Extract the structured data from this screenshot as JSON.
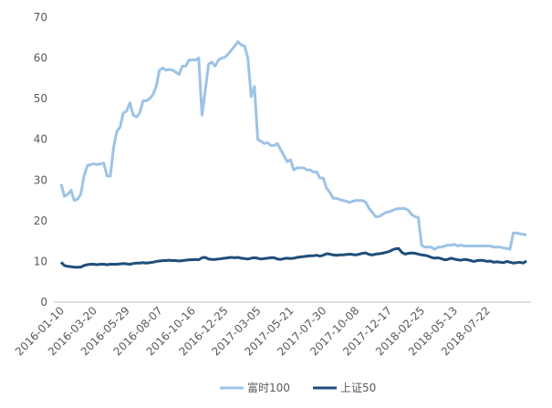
{
  "chart_data": {
    "type": "line",
    "categories": [
      "2016-01-10",
      null,
      null,
      null,
      null,
      null,
      null,
      null,
      null,
      null,
      "2016-03-20",
      null,
      null,
      null,
      null,
      null,
      null,
      null,
      null,
      null,
      "2016-05-29",
      null,
      null,
      null,
      null,
      null,
      null,
      null,
      null,
      null,
      "2016-08-07",
      null,
      null,
      null,
      null,
      null,
      null,
      null,
      null,
      null,
      "2016-10-16",
      null,
      null,
      null,
      null,
      null,
      null,
      null,
      null,
      null,
      "2016-12-25",
      null,
      null,
      null,
      null,
      null,
      null,
      null,
      null,
      null,
      "2017-03-05",
      null,
      null,
      null,
      null,
      null,
      null,
      null,
      null,
      null,
      "2017-05-21",
      null,
      null,
      null,
      null,
      null,
      null,
      null,
      null,
      null,
      "2017-07-30",
      null,
      null,
      null,
      null,
      null,
      null,
      null,
      null,
      null,
      "2017-10-08",
      null,
      null,
      null,
      null,
      null,
      null,
      null,
      null,
      null,
      "2017-12-17",
      null,
      null,
      null,
      null,
      null,
      null,
      null,
      null,
      null,
      "2018-02-25",
      null,
      null,
      null,
      null,
      null,
      null,
      null,
      null,
      null,
      "2018-05-13",
      null,
      null,
      null,
      null,
      null,
      null,
      null,
      null,
      null,
      "2018-07-22",
      null,
      null,
      null,
      null,
      null,
      null,
      null,
      null,
      null,
      null,
      null,
      null
    ],
    "series": [
      {
        "name": "富时100",
        "color": "#9dc3e6",
        "values": [
          29,
          26,
          26.5,
          27.5,
          25,
          25.3,
          26.5,
          31,
          33.5,
          33.8,
          34,
          33.8,
          34,
          34.2,
          31,
          31,
          38,
          42,
          43,
          46.5,
          47,
          49,
          46,
          45.5,
          46.5,
          49.5,
          49.5,
          50,
          51,
          53,
          57,
          57.5,
          57,
          57.2,
          57,
          56.5,
          56,
          58,
          58,
          59.5,
          59.5,
          59.5,
          60,
          46,
          52,
          58.5,
          59,
          58,
          59.5,
          60,
          60.2,
          61,
          62,
          63,
          64,
          63.2,
          63,
          60,
          50.5,
          53,
          40,
          39.5,
          39,
          39.2,
          38.5,
          38.5,
          39,
          37.5,
          36,
          34.5,
          35,
          32.5,
          33,
          33,
          33,
          32.5,
          32.5,
          32,
          32,
          30.5,
          30.5,
          28,
          27,
          25.5,
          25.5,
          25.2,
          25,
          24.8,
          24.5,
          24.8,
          25,
          25,
          25,
          24.5,
          23,
          22,
          21,
          21,
          21.5,
          22,
          22.2,
          22.5,
          22.8,
          23,
          23,
          23,
          22.5,
          21.5,
          21,
          20.8,
          14,
          13.5,
          13.5,
          13.5,
          13,
          13.5,
          13.5,
          13.8,
          14,
          14,
          14.2,
          13.8,
          14,
          13.8,
          13.8,
          13.8,
          13.8,
          13.8,
          13.8,
          13.8,
          13.8,
          13.8,
          13.5,
          13.5,
          13.5,
          13.3,
          13.2,
          13,
          17,
          17,
          16.8,
          16.7,
          16.5
        ]
      },
      {
        "name": "上证50",
        "color": "#1f4e79",
        "values": [
          9.8,
          9,
          8.8,
          8.7,
          8.6,
          8.6,
          8.6,
          9,
          9.2,
          9.3,
          9.3,
          9.2,
          9.3,
          9.3,
          9.2,
          9.3,
          9.3,
          9.3,
          9.4,
          9.5,
          9.4,
          9.3,
          9.5,
          9.6,
          9.6,
          9.7,
          9.6,
          9.7,
          9.8,
          10,
          10.1,
          10.2,
          10.2,
          10.3,
          10.2,
          10.2,
          10.1,
          10.2,
          10.3,
          10.4,
          10.4,
          10.5,
          10.4,
          10.9,
          11,
          10.6,
          10.5,
          10.5,
          10.6,
          10.7,
          10.8,
          10.9,
          11,
          10.9,
          11,
          10.8,
          10.7,
          10.6,
          10.8,
          10.9,
          10.8,
          10.6,
          10.7,
          10.8,
          10.9,
          10.9,
          10.6,
          10.5,
          10.7,
          10.8,
          10.7,
          10.8,
          11,
          11.1,
          11.2,
          11.3,
          11.4,
          11.4,
          11.5,
          11.3,
          11.5,
          11.9,
          11.8,
          11.6,
          11.5,
          11.6,
          11.6,
          11.7,
          11.8,
          11.7,
          11.6,
          11.8,
          12,
          12.1,
          11.7,
          11.6,
          11.8,
          11.9,
          12,
          12.2,
          12.4,
          12.8,
          13.1,
          13.2,
          12.2,
          11.8,
          12,
          12.1,
          12,
          11.8,
          11.6,
          11.5,
          11.3,
          11,
          10.8,
          10.9,
          10.7,
          10.4,
          10.5,
          10.8,
          10.6,
          10.4,
          10.3,
          10.5,
          10.4,
          10.2,
          10,
          10.2,
          10.3,
          10.2,
          10,
          10.1,
          9.8,
          9.9,
          9.8,
          9.7,
          10,
          9.8,
          9.6,
          9.7,
          9.8,
          9.6,
          10.1
        ]
      }
    ],
    "ylim": [
      0,
      70
    ],
    "yticks": [
      0,
      10,
      20,
      30,
      40,
      50,
      60,
      70
    ],
    "grid": false,
    "legend": "bottom"
  }
}
